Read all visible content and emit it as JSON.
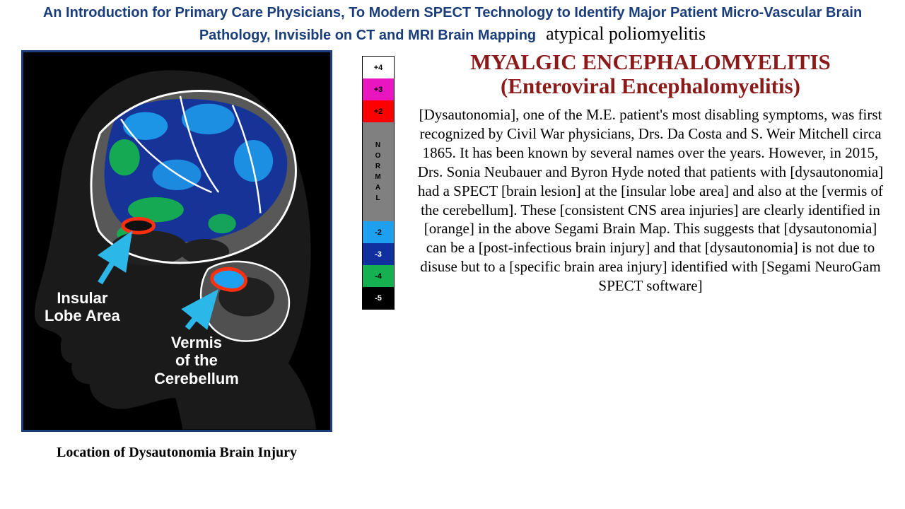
{
  "header": {
    "line1": "An Introduction for Primary Care Physicians, To Modern SPECT Technology to Identify Major Patient Micro-Vascular Brain",
    "line2_left": "Pathology, Invisible on CT and MRI Brain Mapping",
    "line2_right": "atypical poliomyelitis"
  },
  "title": {
    "line1": "MYALGIC ENCEPHALOMYELITIS",
    "line2": "(Enteroviral Encephalomyelitis)"
  },
  "body": "[Dysautonomia], one of the M.E. patient's most disabling symptoms, was first recognized by Civil War physicians, Drs. Da Costa and S. Weir Mitchell circa 1865. It has been known by several names over the years. However, in 2015, Drs. Sonia Neubauer and Byron Hyde noted that patients with [dysautonomia] had a SPECT [brain lesion] at the [insular lobe area] and also at the [vermis of the cerebellum]. These [consistent CNS area injuries] are clearly identified in [orange] in the above Segami Brain Map. This suggests that [dysautonomia] can be a [post-infectious brain injury] and that [dysautonomia] is not due to disuse but to a [specific brain area injury] identified with [Segami NeuroGam SPECT software]",
  "brain_labels": {
    "insular": "Insular\nLobe Area",
    "vermis": "Vermis\nof the\nCerebellum"
  },
  "caption": "Location of Dysautonomia Brain Injury",
  "scale": {
    "cells": [
      {
        "label": "+4",
        "bg": "#ffffff",
        "fg": "#000000"
      },
      {
        "label": "+3",
        "bg": "#e815c1",
        "fg": "#000000"
      },
      {
        "label": "+2",
        "bg": "#ff0000",
        "fg": "#000000"
      },
      {
        "label": "NORMAL",
        "bg": "#808080",
        "fg": "#000000",
        "normal": true
      },
      {
        "label": "-2",
        "bg": "#1ea0f0",
        "fg": "#000000"
      },
      {
        "label": "-3",
        "bg": "#1030a0",
        "fg": "#ffffff"
      },
      {
        "label": "-4",
        "bg": "#15b050",
        "fg": "#000000"
      },
      {
        "label": "-5",
        "bg": "#000000",
        "fg": "#ffffff"
      }
    ]
  },
  "brain_colors": {
    "head_silhouette": "#1a1a1a",
    "brain_base": "#606060",
    "region_dark": "#303030",
    "region_blue_dark": "#1030a0",
    "region_blue_light": "#1ea0f0",
    "region_green": "#15b050",
    "region_red_outline": "#ff3010",
    "outline_white": "#ffffff",
    "arrow": "#2bb8e8"
  }
}
